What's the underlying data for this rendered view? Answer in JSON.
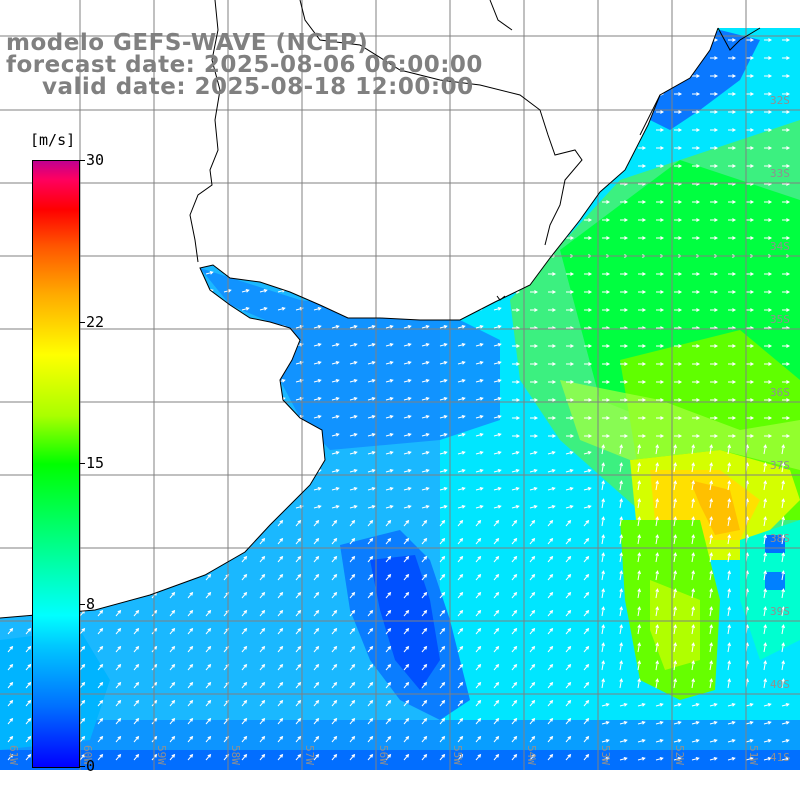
{
  "title": {
    "model": "modelo GEFS-WAVE (NCEP)",
    "forecast": "forecast date: 2025-08-06 06:00:00",
    "valid": "valid date: 2025-08-18 12:00:00"
  },
  "colorbar": {
    "unit": "[m/s]",
    "ticks": [
      {
        "value": 30,
        "label": "30"
      },
      {
        "value": 22,
        "label": "22"
      },
      {
        "value": 15,
        "label": "15"
      },
      {
        "value": 8,
        "label": "8"
      },
      {
        "value": 0,
        "label": "0"
      }
    ],
    "colors": [
      "#0000ff",
      "#00c8ff",
      "#00ffff",
      "#00ff00",
      "#ffff00",
      "#ff5500",
      "#ff0000",
      "#c00090"
    ]
  },
  "map": {
    "field": "wind speed with direction arrows",
    "lat_labels": [
      "32S",
      "33S",
      "34S",
      "35S",
      "36S",
      "37S",
      "38S",
      "39S",
      "40S",
      "41S"
    ],
    "lon_labels": [
      "61W",
      "60W",
      "59W",
      "58W",
      "57W",
      "56W",
      "55W",
      "54W",
      "53W",
      "52W",
      "51W"
    ],
    "land_color": "#ffffff",
    "grid_color": "#808080",
    "arrow_color": "#ffffff"
  }
}
